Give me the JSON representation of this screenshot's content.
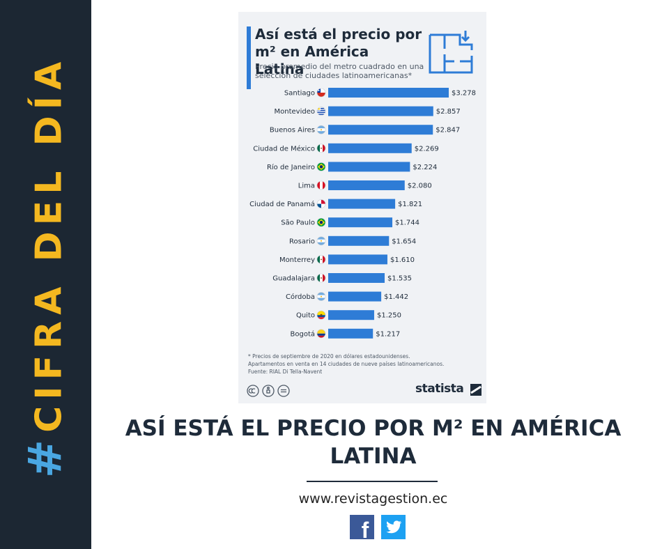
{
  "sidebar": {
    "hash": "#",
    "label": "CIFRA DEL DÍA"
  },
  "chart_data": {
    "type": "bar",
    "orientation": "horizontal",
    "title": "Así está el precio por m² en América Latina",
    "subtitle": "Precio promedio del metro cuadrado en una selección de ciudades latinoamericanas*",
    "categories": [
      "Santiago",
      "Montevideo",
      "Buenos Aires",
      "Ciudad de México",
      "Río de Janeiro",
      "Lima",
      "Ciudad de Panamá",
      "São Paulo",
      "Rosario",
      "Monterrey",
      "Guadalajara",
      "Córdoba",
      "Quito",
      "Bogotá"
    ],
    "values": [
      3278,
      2857,
      2847,
      2269,
      2224,
      2080,
      1821,
      1744,
      1654,
      1610,
      1535,
      1442,
      1250,
      1217
    ],
    "value_labels": [
      "$3.278",
      "$2.857",
      "$2.847",
      "$2.269",
      "$2.224",
      "$2.080",
      "$1.821",
      "$1.744",
      "$1.654",
      "$1.610",
      "$1.535",
      "$1.442",
      "$1.250",
      "$1.217"
    ],
    "flags": [
      "chile",
      "uruguay",
      "argentina",
      "mexico",
      "brazil",
      "peru",
      "panama",
      "brazil",
      "argentina",
      "mexico",
      "mexico",
      "argentina",
      "ecuador",
      "colombia"
    ],
    "bar_color": "#2e7cd6",
    "footnote": [
      "* Precios de septiembre de 2020 en dólares estadounidenses.",
      "Apartamentos en venta en 14 ciudades de nueve países latinoamericanos.",
      "Fuente: RIAL Di Tella-Navent"
    ],
    "source_brand": "statista"
  },
  "headline": "ASÍ ESTÁ EL PRECIO POR M² EN AMÉRICA LATINA",
  "website": "www.revistagestion.ec",
  "social": {
    "facebook": "f"
  },
  "colors": {
    "sidebar_bg": "#1c2733",
    "sidebar_text": "#f4b820",
    "hash": "#4aa7e2",
    "bar": "#2e7cd6",
    "facebook": "#3b5998",
    "twitter": "#1da1f2"
  }
}
